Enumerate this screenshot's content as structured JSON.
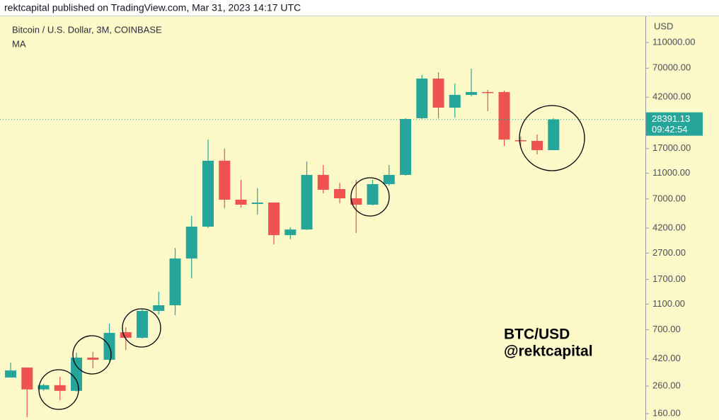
{
  "header": "rektcapital published on TradingView.com, Mar 31, 2023 14:17 UTC",
  "chart_data": {
    "type": "candlestick",
    "title": "Bitcoin / U.S. Dollar, 3M, COINBASE",
    "subtitle": "MA",
    "y_label": "USD",
    "log_scale": true,
    "categories": [
      null,
      null,
      null,
      null,
      null,
      null,
      null,
      null,
      null,
      null,
      null,
      null,
      null,
      null,
      null,
      null,
      null,
      null,
      null,
      null,
      null,
      null,
      null,
      null,
      null,
      null,
      null,
      null,
      null,
      null,
      null,
      null,
      null,
      null
    ],
    "open": [
      302,
      360,
      245,
      264,
      239,
      429,
      413,
      671,
      608,
      976,
      1078,
      2455,
      4300,
      13720,
      6910,
      6410,
      6575,
      3705,
      4090,
      10690,
      8330,
      7085,
      6330,
      9090,
      10690,
      28990,
      58260,
      34940,
      43740,
      45970,
      45970,
      19690,
      19450,
      16540
    ],
    "high": [
      393,
      360,
      270,
      306,
      468,
      474,
      780,
      733,
      1001,
      1366,
      2960,
      5185,
      19930,
      16960,
      9795,
      8435,
      6575,
      4250,
      13550,
      12730,
      9320,
      9795,
      9795,
      12730,
      28990,
      61990,
      65160,
      53390,
      69360,
      47710,
      47130,
      20960,
      21760,
      28990
    ],
    "low": [
      302,
      150,
      239,
      203,
      236,
      355,
      403,
      491,
      600,
      917,
      906,
      1730,
      4200,
      5950,
      6025,
      5320,
      3150,
      3440,
      4045,
      7730,
      6490,
      3845,
      6255,
      8865,
      10560,
      28620,
      28990,
      29350,
      42650,
      32830,
      17820,
      17820,
      15350,
      16540
    ],
    "close": [
      342,
      245,
      264,
      239,
      429,
      413,
      663,
      608,
      976,
      1078,
      2455,
      4300,
      13720,
      6910,
      6330,
      6575,
      3705,
      4090,
      10690,
      8230,
      7085,
      6330,
      9090,
      10690,
      28620,
      58260,
      34940,
      43740,
      45970,
      45500,
      19930,
      19450,
      16540,
      28391.13
    ],
    "up_color": "#26a69a",
    "down_color": "#ef5350",
    "ylim": [
      143,
      176600
    ],
    "yticks": [
      {
        "value": 110000,
        "label": "110000.00"
      },
      {
        "value": 70000,
        "label": "70000.00"
      },
      {
        "value": 42000,
        "label": "42000.00"
      },
      {
        "value": 17000,
        "label": "17000.00"
      },
      {
        "value": 11000,
        "label": "11000.00"
      },
      {
        "value": 7000,
        "label": "7000.00"
      },
      {
        "value": 4200,
        "label": "4200.00"
      },
      {
        "value": 2700,
        "label": "2700.00"
      },
      {
        "value": 1700,
        "label": "1700.00"
      },
      {
        "value": 1100,
        "label": "1100.00"
      },
      {
        "value": 700,
        "label": "700.00"
      },
      {
        "value": 420,
        "label": "420.00"
      },
      {
        "value": 260,
        "label": "260.00"
      },
      {
        "value": 160,
        "label": "160.00"
      }
    ],
    "last_price": 28391.13,
    "countdown": "09:42:54",
    "annotations": [
      "BTC/USD",
      "@rektcapital"
    ]
  }
}
